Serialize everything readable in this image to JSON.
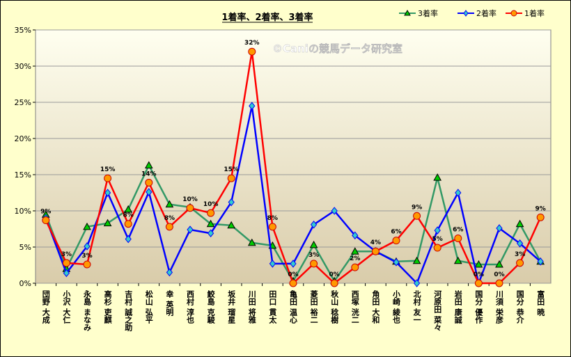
{
  "chart_data": {
    "type": "line",
    "title": "1着率、2着率、3着率",
    "watermark": "©Caniの競馬データ研究室",
    "ylim": [
      0,
      35
    ],
    "yticks": [
      "0%",
      "5%",
      "10%",
      "15%",
      "20%",
      "25%",
      "30%",
      "35%"
    ],
    "grid": "horizontal",
    "legend_position": "top-right",
    "categories": [
      "団野 大成",
      "小沢 大仁",
      "永島 まなみ",
      "高杉 吏麒",
      "吉村 誠之助",
      "松山 弘平",
      "幸 英明",
      "西村 淳也",
      "鮫島 克駿",
      "坂井 瑠星",
      "川田 将雅",
      "田口 貫太",
      "亀田 温心",
      "菱田 裕二",
      "秋山 稔樹",
      "西塚 洸二",
      "角田 大和",
      "小崎 綾也",
      "北村 友一",
      "河原田 菜々",
      "岩田 康誠",
      "国分 優作",
      "川須 栄彦",
      "国分 恭介",
      "富田 暁"
    ],
    "series": [
      {
        "name": "3着率",
        "color": "#339966",
        "marker": "triangle",
        "marker_fill": "#00cc00",
        "values": [
          9.5,
          2.0,
          7.8,
          8.3,
          10.2,
          16.3,
          10.9,
          10.5,
          8.2,
          8.0,
          5.6,
          5.2,
          0.3,
          5.3,
          0.3,
          4.4,
          4.4,
          3.0,
          3.1,
          14.6,
          3.1,
          2.6,
          2.6,
          8.2,
          3.0
        ]
      },
      {
        "name": "2着率",
        "color": "#0000ff",
        "marker": "diamond",
        "marker_fill": "#33cccc",
        "values": [
          9.0,
          1.4,
          5.1,
          12.5,
          6.1,
          12.6,
          1.5,
          7.4,
          6.9,
          11.2,
          24.5,
          2.7,
          2.7,
          8.1,
          10.0,
          6.6,
          4.4,
          2.9,
          0.0,
          7.3,
          12.5,
          0.0,
          7.6,
          5.5,
          3.0
        ]
      },
      {
        "name": "1着率",
        "color": "#ff0000",
        "marker": "circle",
        "marker_fill": "#ff9900",
        "values": [
          8.7,
          2.8,
          2.6,
          14.5,
          8.2,
          13.9,
          7.8,
          10.4,
          9.7,
          14.5,
          32.0,
          7.8,
          0.0,
          2.7,
          0.0,
          2.2,
          4.4,
          5.9,
          9.3,
          4.9,
          6.2,
          0.0,
          0.0,
          2.8,
          9.1
        ]
      }
    ],
    "data_labels": [
      "9%",
      "3%",
      "3%",
      "15%",
      "8%",
      "14%",
      "8%",
      "10%",
      "10%",
      "15%",
      "32%",
      "8%",
      "0%",
      "3%",
      "0%",
      "2%",
      "4%",
      "6%",
      "9%",
      "5%",
      "6%",
      "0%",
      "0%",
      "3%",
      "9%"
    ]
  },
  "colors": {
    "plot_top": "#fffff0",
    "plot_bottom": "#d9ccaa",
    "page_bg": "#ffffcc",
    "title_underline": "#000000"
  }
}
